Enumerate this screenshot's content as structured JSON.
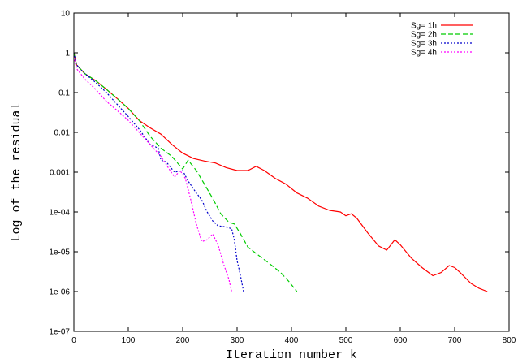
{
  "chart_data": {
    "type": "line",
    "title": "",
    "xlabel": "Iteration number k",
    "ylabel": "Log of the residual",
    "xlim": [
      0,
      800
    ],
    "ylim": [
      1e-07,
      10
    ],
    "y_scale": "log",
    "grid": false,
    "legend_position": "top-right",
    "x_ticks": [
      0,
      100,
      200,
      300,
      400,
      500,
      600,
      700,
      800
    ],
    "x_tick_labels": [
      "0",
      "100",
      "200",
      "300",
      "400",
      "500",
      "600",
      "700",
      "800"
    ],
    "y_ticks": [
      1e-07,
      1e-06,
      1e-05,
      0.0001,
      0.001,
      0.01,
      0.1,
      1,
      10
    ],
    "y_tick_labels": [
      "1e-07",
      "1e-06",
      "1e-05",
      "1e-04",
      "0.001",
      "0.01",
      "0.1",
      "1",
      "10"
    ],
    "series": [
      {
        "name": "Sg= 1h",
        "color": "#ff0000",
        "dash": "solid",
        "points": [
          [
            0,
            1.0
          ],
          [
            5,
            0.5
          ],
          [
            20,
            0.3
          ],
          [
            40,
            0.2
          ],
          [
            60,
            0.12
          ],
          [
            80,
            0.07
          ],
          [
            100,
            0.04
          ],
          [
            120,
            0.02
          ],
          [
            140,
            0.013
          ],
          [
            160,
            0.009
          ],
          [
            180,
            0.005
          ],
          [
            200,
            0.003
          ],
          [
            220,
            0.0022
          ],
          [
            240,
            0.0019
          ],
          [
            260,
            0.0017
          ],
          [
            280,
            0.0013
          ],
          [
            300,
            0.0011
          ],
          [
            320,
            0.0011
          ],
          [
            335,
            0.0014
          ],
          [
            350,
            0.0011
          ],
          [
            370,
            0.0007
          ],
          [
            390,
            0.0005
          ],
          [
            410,
            0.0003
          ],
          [
            430,
            0.00022
          ],
          [
            450,
            0.00014
          ],
          [
            470,
            0.00011
          ],
          [
            490,
            0.0001
          ],
          [
            500,
            8e-05
          ],
          [
            510,
            9e-05
          ],
          [
            520,
            7e-05
          ],
          [
            540,
            3e-05
          ],
          [
            560,
            1.4e-05
          ],
          [
            575,
            1.1e-05
          ],
          [
            590,
            2e-05
          ],
          [
            600,
            1.5e-05
          ],
          [
            620,
            7e-06
          ],
          [
            640,
            4e-06
          ],
          [
            660,
            2.5e-06
          ],
          [
            675,
            3e-06
          ],
          [
            690,
            4.5e-06
          ],
          [
            700,
            4e-06
          ],
          [
            710,
            3e-06
          ],
          [
            730,
            1.6e-06
          ],
          [
            745,
            1.2e-06
          ],
          [
            760,
            1e-06
          ]
        ]
      },
      {
        "name": "Sg= 2h",
        "color": "#00cc00",
        "dash": "dashed",
        "points": [
          [
            0,
            1.0
          ],
          [
            5,
            0.5
          ],
          [
            20,
            0.3
          ],
          [
            40,
            0.2
          ],
          [
            60,
            0.12
          ],
          [
            80,
            0.07
          ],
          [
            100,
            0.04
          ],
          [
            120,
            0.02
          ],
          [
            140,
            0.008
          ],
          [
            160,
            0.004
          ],
          [
            180,
            0.0025
          ],
          [
            200,
            0.0012
          ],
          [
            210,
            0.002
          ],
          [
            225,
            0.0011
          ],
          [
            240,
            0.0005
          ],
          [
            255,
            0.00022
          ],
          [
            270,
            9e-05
          ],
          [
            285,
            5.5e-05
          ],
          [
            295,
            5e-05
          ],
          [
            305,
            3e-05
          ],
          [
            320,
            1.3e-05
          ],
          [
            340,
            8e-06
          ],
          [
            360,
            5e-06
          ],
          [
            380,
            3e-06
          ],
          [
            395,
            1.8e-06
          ],
          [
            410,
            1e-06
          ]
        ]
      },
      {
        "name": "Sg= 3h",
        "color": "#0000cc",
        "dash": "dotted",
        "points": [
          [
            0,
            1.0
          ],
          [
            5,
            0.5
          ],
          [
            20,
            0.3
          ],
          [
            40,
            0.18
          ],
          [
            60,
            0.1
          ],
          [
            80,
            0.05
          ],
          [
            100,
            0.025
          ],
          [
            120,
            0.012
          ],
          [
            140,
            0.005
          ],
          [
            155,
            0.004
          ],
          [
            160,
            0.002
          ],
          [
            170,
            0.0018
          ],
          [
            185,
            0.001
          ],
          [
            200,
            0.0011
          ],
          [
            210,
            0.0006
          ],
          [
            225,
            0.0003
          ],
          [
            235,
            0.0002
          ],
          [
            245,
            0.0001
          ],
          [
            255,
            6e-05
          ],
          [
            265,
            4.5e-05
          ],
          [
            280,
            4.2e-05
          ],
          [
            290,
            3.8e-05
          ],
          [
            295,
            2e-05
          ],
          [
            300,
            6e-06
          ],
          [
            305,
            3e-06
          ],
          [
            312,
            1e-06
          ]
        ]
      },
      {
        "name": "Sg= 4h",
        "color": "#ff00ff",
        "dash": "dotted",
        "points": [
          [
            0,
            0.8
          ],
          [
            5,
            0.4
          ],
          [
            20,
            0.22
          ],
          [
            40,
            0.12
          ],
          [
            60,
            0.06
          ],
          [
            80,
            0.035
          ],
          [
            100,
            0.02
          ],
          [
            120,
            0.01
          ],
          [
            140,
            0.005
          ],
          [
            160,
            0.0025
          ],
          [
            175,
            0.0012
          ],
          [
            185,
            0.00075
          ],
          [
            195,
            0.0011
          ],
          [
            205,
            0.0007
          ],
          [
            215,
            0.0002
          ],
          [
            225,
            5e-05
          ],
          [
            235,
            1.8e-05
          ],
          [
            245,
            2e-05
          ],
          [
            255,
            2.8e-05
          ],
          [
            265,
            1.5e-05
          ],
          [
            275,
            5e-06
          ],
          [
            285,
            2e-06
          ],
          [
            290,
            1e-06
          ]
        ]
      }
    ]
  }
}
